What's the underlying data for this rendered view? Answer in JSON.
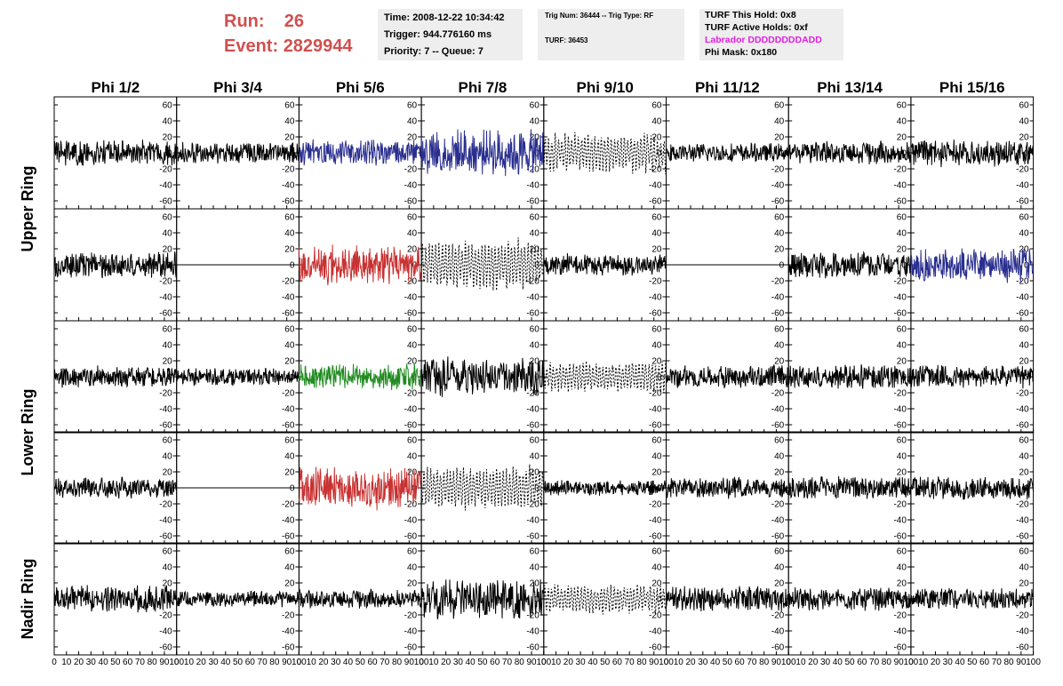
{
  "header": {
    "run_label": "Run:",
    "run_value": "26",
    "event_label": "Event:",
    "event_value": "2829944"
  },
  "info_time": {
    "time": "Time: 2008-12-22 10:34:42",
    "trigger": "Trigger: 944.776160 ms",
    "priority": "Priority: 7 -- Queue: 7"
  },
  "info_trig": {
    "trig": "Trig Num: 36444 -- Trig Type: RF",
    "turf": "TURF: 36453"
  },
  "info_turf": {
    "this_hold": "TURF This Hold: 0x8",
    "active_holds": "TURF Active Holds: 0xf",
    "labrador": "Labrador DDDDDDDDADD",
    "phi_mask": "Phi Mask: 0x180"
  },
  "colors": {
    "header_red": "#d0504f",
    "magenta": "#e020e0",
    "blue": "#2a2f8f",
    "red": "#c83232",
    "green": "#228b22",
    "black": "#000000",
    "info_bg": "#eeeeee"
  },
  "chart_data": {
    "type": "line",
    "columns": [
      "Phi 1/2",
      "Phi 3/4",
      "Phi 5/6",
      "Phi 7/8",
      "Phi 9/10",
      "Phi 11/12",
      "Phi 13/14",
      "Phi 15/16"
    ],
    "rows": [
      {
        "index": 0,
        "group": "Upper Ring"
      },
      {
        "index": 1,
        "group": "Upper Ring"
      },
      {
        "index": 2,
        "group": "Lower Ring"
      },
      {
        "index": 3,
        "group": "Lower Ring"
      },
      {
        "index": 4,
        "group": "Nadir Ring"
      }
    ],
    "row_groups": [
      {
        "label": "Upper Ring",
        "rows": [
          0,
          1
        ]
      },
      {
        "label": "Lower Ring",
        "rows": [
          2,
          3
        ]
      },
      {
        "label": "Nadir Ring",
        "rows": [
          4
        ]
      }
    ],
    "xlim": [
      0,
      100
    ],
    "ylim": [
      -70,
      70
    ],
    "y_ticks": [
      -60,
      -40,
      -20,
      0,
      20,
      40,
      60
    ],
    "x_tick_labels": [
      "0",
      "10",
      "20",
      "30",
      "40",
      "50",
      "60",
      "70",
      "80",
      "90",
      "100"
    ],
    "samples_per_trace": 260,
    "panels": [
      {
        "row": 0,
        "col": 0,
        "color": "black",
        "style": "solid",
        "amp": 13,
        "seed": 1
      },
      {
        "row": 0,
        "col": 1,
        "color": "black",
        "style": "solid",
        "amp": 11,
        "seed": 2
      },
      {
        "row": 0,
        "col": 2,
        "color": "blue",
        "style": "solid",
        "amp": 14,
        "seed": 3
      },
      {
        "row": 0,
        "col": 3,
        "color": "blue",
        "style": "solid",
        "amp": 24,
        "seed": 4
      },
      {
        "row": 0,
        "col": 4,
        "color": "black",
        "style": "dotted",
        "amp": 20,
        "seed": 5
      },
      {
        "row": 0,
        "col": 5,
        "color": "black",
        "style": "solid",
        "amp": 10,
        "seed": 6
      },
      {
        "row": 0,
        "col": 6,
        "color": "black",
        "style": "solid",
        "amp": 12,
        "seed": 7
      },
      {
        "row": 0,
        "col": 7,
        "color": "black",
        "style": "solid",
        "amp": 14,
        "seed": 8
      },
      {
        "row": 1,
        "col": 0,
        "color": "black",
        "style": "solid",
        "amp": 14,
        "seed": 9
      },
      {
        "row": 1,
        "col": 1,
        "color": "black",
        "style": "flat",
        "amp": 0,
        "seed": 10
      },
      {
        "row": 1,
        "col": 2,
        "color": "red",
        "style": "solid",
        "amp": 20,
        "seed": 11
      },
      {
        "row": 1,
        "col": 3,
        "color": "black",
        "style": "dotted",
        "amp": 26,
        "seed": 12
      },
      {
        "row": 1,
        "col": 4,
        "color": "black",
        "style": "solid",
        "amp": 12,
        "seed": 13
      },
      {
        "row": 1,
        "col": 5,
        "color": "black",
        "style": "flat",
        "amp": 0,
        "seed": 14
      },
      {
        "row": 1,
        "col": 6,
        "color": "black",
        "style": "solid",
        "amp": 14,
        "seed": 15
      },
      {
        "row": 1,
        "col": 7,
        "color": "blue",
        "style": "solid",
        "amp": 18,
        "seed": 16
      },
      {
        "row": 2,
        "col": 0,
        "color": "black",
        "style": "solid",
        "amp": 11,
        "seed": 17
      },
      {
        "row": 2,
        "col": 1,
        "color": "black",
        "style": "solid",
        "amp": 9,
        "seed": 18
      },
      {
        "row": 2,
        "col": 2,
        "color": "green",
        "style": "solid",
        "amp": 13,
        "seed": 19
      },
      {
        "row": 2,
        "col": 3,
        "color": "black",
        "style": "solid",
        "amp": 20,
        "seed": 20
      },
      {
        "row": 2,
        "col": 4,
        "color": "black",
        "style": "dotted",
        "amp": 16,
        "seed": 21
      },
      {
        "row": 2,
        "col": 5,
        "color": "black",
        "style": "solid",
        "amp": 12,
        "seed": 22
      },
      {
        "row": 2,
        "col": 6,
        "color": "black",
        "style": "solid",
        "amp": 13,
        "seed": 23
      },
      {
        "row": 2,
        "col": 7,
        "color": "black",
        "style": "solid",
        "amp": 12,
        "seed": 24
      },
      {
        "row": 3,
        "col": 0,
        "color": "black",
        "style": "solid",
        "amp": 11,
        "seed": 25
      },
      {
        "row": 3,
        "col": 1,
        "color": "black",
        "style": "flat",
        "amp": 0,
        "seed": 26
      },
      {
        "row": 3,
        "col": 2,
        "color": "red",
        "style": "solid",
        "amp": 22,
        "seed": 27
      },
      {
        "row": 3,
        "col": 3,
        "color": "black",
        "style": "dotted",
        "amp": 22,
        "seed": 28
      },
      {
        "row": 3,
        "col": 4,
        "color": "black",
        "style": "solid",
        "amp": 8,
        "seed": 29
      },
      {
        "row": 3,
        "col": 5,
        "color": "black",
        "style": "solid",
        "amp": 11,
        "seed": 30
      },
      {
        "row": 3,
        "col": 6,
        "color": "black",
        "style": "solid",
        "amp": 12,
        "seed": 31
      },
      {
        "row": 3,
        "col": 7,
        "color": "black",
        "style": "solid",
        "amp": 12,
        "seed": 32
      },
      {
        "row": 4,
        "col": 0,
        "color": "black",
        "style": "solid",
        "amp": 14,
        "seed": 33
      },
      {
        "row": 4,
        "col": 1,
        "color": "black",
        "style": "solid",
        "amp": 8,
        "seed": 34
      },
      {
        "row": 4,
        "col": 2,
        "color": "black",
        "style": "solid",
        "amp": 10,
        "seed": 35
      },
      {
        "row": 4,
        "col": 3,
        "color": "black",
        "style": "solid",
        "amp": 20,
        "seed": 36
      },
      {
        "row": 4,
        "col": 4,
        "color": "black",
        "style": "dotted",
        "amp": 15,
        "seed": 37
      },
      {
        "row": 4,
        "col": 5,
        "color": "black",
        "style": "solid",
        "amp": 13,
        "seed": 38
      },
      {
        "row": 4,
        "col": 6,
        "color": "black",
        "style": "solid",
        "amp": 12,
        "seed": 39
      },
      {
        "row": 4,
        "col": 7,
        "color": "black",
        "style": "solid",
        "amp": 11,
        "seed": 40
      }
    ]
  }
}
